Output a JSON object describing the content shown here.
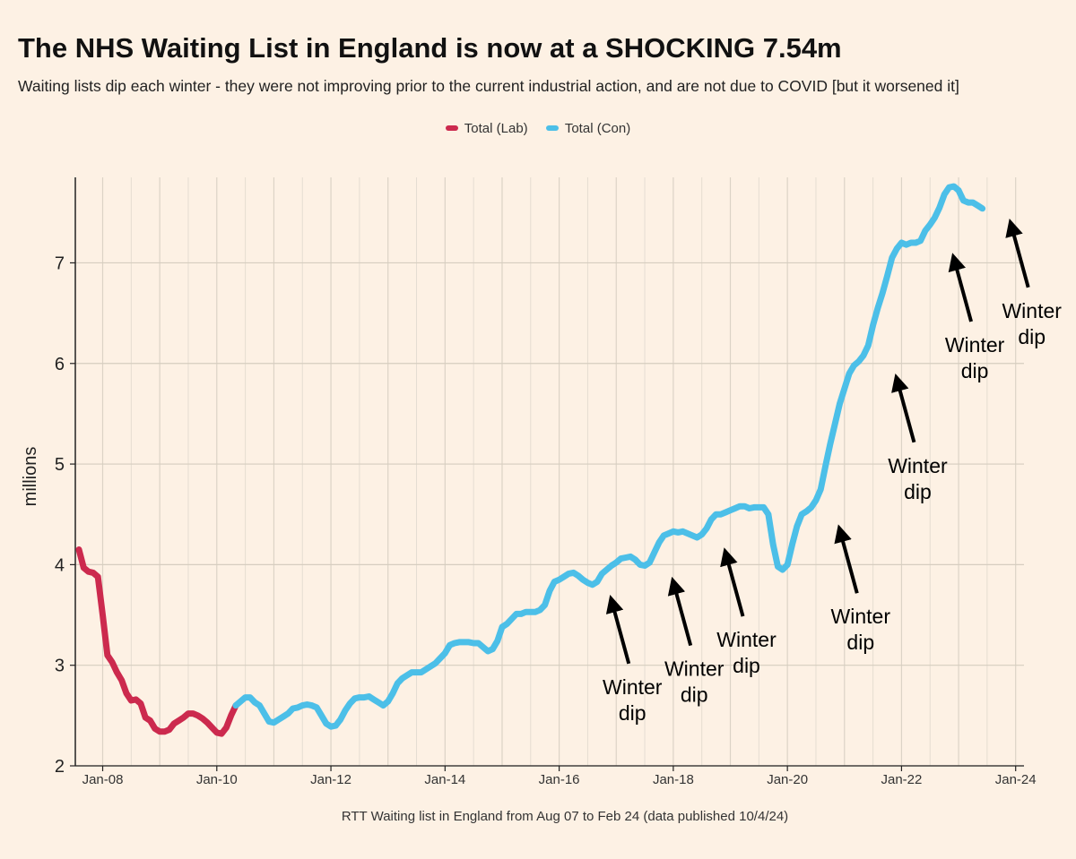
{
  "chart_data": {
    "type": "line",
    "title": "The NHS Waiting List in England is now at a SHOCKING 7.54m",
    "subtitle": "Waiting lists dip each winter - they were not improving prior to the current industrial action, and are not due to COVID [but it worsened it]",
    "ylabel": "millions",
    "xlabel": "RTT Waiting list in England from Aug 07 to Feb 24 (data published 10/4/24)",
    "ylim": [
      2,
      7.85
    ],
    "xlim": [
      "2007-08",
      "2024-02"
    ],
    "y_ticks": [
      "2",
      "3",
      "4",
      "5",
      "6",
      "7"
    ],
    "x_ticks": [
      "Jan-08",
      "Jan-10",
      "Jan-12",
      "Jan-14",
      "Jan-16",
      "Jan-18",
      "Jan-20",
      "Jan-22",
      "Jan-24"
    ],
    "grid": true,
    "legend_position": "top-center",
    "series": [
      {
        "name": "Total (Lab)",
        "color": "#cc2a4e",
        "points": [
          [
            "2007-08",
            4.15
          ],
          [
            "2007-09",
            3.97
          ],
          [
            "2007-10",
            3.93
          ],
          [
            "2007-11",
            3.92
          ],
          [
            "2007-12",
            3.88
          ],
          [
            "2008-01",
            3.5
          ],
          [
            "2008-02",
            3.1
          ],
          [
            "2008-03",
            3.03
          ],
          [
            "2008-04",
            2.93
          ],
          [
            "2008-05",
            2.85
          ],
          [
            "2008-06",
            2.72
          ],
          [
            "2008-07",
            2.65
          ],
          [
            "2008-08",
            2.66
          ],
          [
            "2008-09",
            2.62
          ],
          [
            "2008-10",
            2.48
          ],
          [
            "2008-11",
            2.45
          ],
          [
            "2008-12",
            2.37
          ],
          [
            "2009-01",
            2.34
          ],
          [
            "2009-02",
            2.34
          ],
          [
            "2009-03",
            2.36
          ],
          [
            "2009-04",
            2.42
          ],
          [
            "2009-05",
            2.45
          ],
          [
            "2009-06",
            2.48
          ],
          [
            "2009-07",
            2.52
          ],
          [
            "2009-08",
            2.52
          ],
          [
            "2009-09",
            2.5
          ],
          [
            "2009-10",
            2.47
          ],
          [
            "2009-11",
            2.43
          ],
          [
            "2009-12",
            2.38
          ],
          [
            "2010-01",
            2.33
          ],
          [
            "2010-02",
            2.32
          ],
          [
            "2010-03",
            2.38
          ],
          [
            "2010-04",
            2.5
          ],
          [
            "2010-05",
            2.6
          ]
        ]
      },
      {
        "name": "Total (Con)",
        "color": "#4cbfe8",
        "points": [
          [
            "2010-05",
            2.6
          ],
          [
            "2010-06",
            2.64
          ],
          [
            "2010-07",
            2.68
          ],
          [
            "2010-08",
            2.68
          ],
          [
            "2010-09",
            2.63
          ],
          [
            "2010-10",
            2.6
          ],
          [
            "2010-11",
            2.52
          ],
          [
            "2010-12",
            2.44
          ],
          [
            "2011-01",
            2.43
          ],
          [
            "2011-02",
            2.46
          ],
          [
            "2011-03",
            2.49
          ],
          [
            "2011-04",
            2.52
          ],
          [
            "2011-05",
            2.57
          ],
          [
            "2011-06",
            2.58
          ],
          [
            "2011-07",
            2.6
          ],
          [
            "2011-08",
            2.61
          ],
          [
            "2011-09",
            2.6
          ],
          [
            "2011-10",
            2.58
          ],
          [
            "2011-11",
            2.5
          ],
          [
            "2011-12",
            2.42
          ],
          [
            "2012-01",
            2.39
          ],
          [
            "2012-02",
            2.4
          ],
          [
            "2012-03",
            2.46
          ],
          [
            "2012-04",
            2.55
          ],
          [
            "2012-05",
            2.62
          ],
          [
            "2012-06",
            2.67
          ],
          [
            "2012-07",
            2.68
          ],
          [
            "2012-08",
            2.68
          ],
          [
            "2012-09",
            2.69
          ],
          [
            "2012-10",
            2.66
          ],
          [
            "2012-11",
            2.63
          ],
          [
            "2012-12",
            2.6
          ],
          [
            "2013-01",
            2.64
          ],
          [
            "2013-02",
            2.72
          ],
          [
            "2013-03",
            2.82
          ],
          [
            "2013-04",
            2.87
          ],
          [
            "2013-05",
            2.9
          ],
          [
            "2013-06",
            2.93
          ],
          [
            "2013-07",
            2.93
          ],
          [
            "2013-08",
            2.93
          ],
          [
            "2013-09",
            2.96
          ],
          [
            "2013-10",
            2.99
          ],
          [
            "2013-11",
            3.02
          ],
          [
            "2013-12",
            3.07
          ],
          [
            "2014-01",
            3.12
          ],
          [
            "2014-02",
            3.2
          ],
          [
            "2014-03",
            3.22
          ],
          [
            "2014-04",
            3.23
          ],
          [
            "2014-05",
            3.23
          ],
          [
            "2014-06",
            3.23
          ],
          [
            "2014-07",
            3.22
          ],
          [
            "2014-08",
            3.22
          ],
          [
            "2014-09",
            3.18
          ],
          [
            "2014-10",
            3.14
          ],
          [
            "2014-11",
            3.16
          ],
          [
            "2014-12",
            3.24
          ],
          [
            "2015-01",
            3.38
          ],
          [
            "2015-02",
            3.41
          ],
          [
            "2015-03",
            3.46
          ],
          [
            "2015-04",
            3.51
          ],
          [
            "2015-05",
            3.51
          ],
          [
            "2015-06",
            3.53
          ],
          [
            "2015-07",
            3.53
          ],
          [
            "2015-08",
            3.53
          ],
          [
            "2015-09",
            3.55
          ],
          [
            "2015-10",
            3.6
          ],
          [
            "2015-11",
            3.74
          ],
          [
            "2015-12",
            3.83
          ],
          [
            "2016-01",
            3.85
          ],
          [
            "2016-02",
            3.88
          ],
          [
            "2016-03",
            3.91
          ],
          [
            "2016-04",
            3.92
          ],
          [
            "2016-05",
            3.89
          ],
          [
            "2016-06",
            3.85
          ],
          [
            "2016-07",
            3.82
          ],
          [
            "2016-08",
            3.8
          ],
          [
            "2016-09",
            3.83
          ],
          [
            "2016-10",
            3.91
          ],
          [
            "2016-11",
            3.95
          ],
          [
            "2016-12",
            3.99
          ],
          [
            "2017-01",
            4.02
          ],
          [
            "2017-02",
            4.06
          ],
          [
            "2017-03",
            4.07
          ],
          [
            "2017-04",
            4.08
          ],
          [
            "2017-05",
            4.05
          ],
          [
            "2017-06",
            4.0
          ],
          [
            "2017-07",
            3.99
          ],
          [
            "2017-08",
            4.02
          ],
          [
            "2017-09",
            4.12
          ],
          [
            "2017-10",
            4.22
          ],
          [
            "2017-11",
            4.29
          ],
          [
            "2017-12",
            4.31
          ],
          [
            "2018-01",
            4.33
          ],
          [
            "2018-02",
            4.32
          ],
          [
            "2018-03",
            4.33
          ],
          [
            "2018-04",
            4.31
          ],
          [
            "2018-05",
            4.29
          ],
          [
            "2018-06",
            4.27
          ],
          [
            "2018-07",
            4.3
          ],
          [
            "2018-08",
            4.36
          ],
          [
            "2018-09",
            4.45
          ],
          [
            "2018-10",
            4.5
          ],
          [
            "2018-11",
            4.5
          ],
          [
            "2018-12",
            4.52
          ],
          [
            "2019-01",
            4.54
          ],
          [
            "2019-02",
            4.56
          ],
          [
            "2019-03",
            4.58
          ],
          [
            "2019-04",
            4.58
          ],
          [
            "2019-05",
            4.56
          ],
          [
            "2019-06",
            4.57
          ],
          [
            "2019-07",
            4.57
          ],
          [
            "2019-08",
            4.57
          ],
          [
            "2019-09",
            4.5
          ],
          [
            "2019-10",
            4.2
          ],
          [
            "2019-11",
            3.98
          ],
          [
            "2019-12",
            3.95
          ],
          [
            "2020-01",
            4.0
          ],
          [
            "2020-02",
            4.2
          ],
          [
            "2020-03",
            4.38
          ],
          [
            "2020-04",
            4.5
          ],
          [
            "2020-05",
            4.53
          ],
          [
            "2020-06",
            4.57
          ],
          [
            "2020-07",
            4.64
          ],
          [
            "2020-08",
            4.75
          ],
          [
            "2020-09",
            4.98
          ],
          [
            "2020-10",
            5.2
          ],
          [
            "2020-11",
            5.4
          ],
          [
            "2020-12",
            5.6
          ],
          [
            "2021-01",
            5.75
          ],
          [
            "2021-02",
            5.9
          ],
          [
            "2021-03",
            5.98
          ],
          [
            "2021-04",
            6.02
          ],
          [
            "2021-05",
            6.08
          ],
          [
            "2021-06",
            6.18
          ],
          [
            "2021-07",
            6.38
          ],
          [
            "2021-08",
            6.55
          ],
          [
            "2021-09",
            6.7
          ],
          [
            "2021-10",
            6.87
          ],
          [
            "2021-11",
            7.05
          ],
          [
            "2021-12",
            7.14
          ],
          [
            "2022-01",
            7.2
          ],
          [
            "2022-02",
            7.18
          ],
          [
            "2022-03",
            7.2
          ],
          [
            "2022-04",
            7.2
          ],
          [
            "2022-05",
            7.22
          ],
          [
            "2022-06",
            7.32
          ],
          [
            "2022-07",
            7.38
          ],
          [
            "2022-08",
            7.45
          ],
          [
            "2022-09",
            7.55
          ],
          [
            "2022-10",
            7.68
          ],
          [
            "2022-11",
            7.75
          ],
          [
            "2022-12",
            7.76
          ],
          [
            "2023-01",
            7.72
          ],
          [
            "2023-02",
            7.62
          ],
          [
            "2023-03",
            7.6
          ],
          [
            "2023-04",
            7.6
          ],
          [
            "2023-05",
            7.57
          ],
          [
            "2023-06",
            7.54
          ]
        ]
      }
    ],
    "annotations": [
      {
        "line1": "Winter",
        "line2": "dip",
        "date": "2017-01",
        "value": 3.8
      },
      {
        "line1": "Winter",
        "line2": "dip",
        "date": "2018-02",
        "value": 3.98
      },
      {
        "line1": "Winter",
        "line2": "dip",
        "date": "2019-01",
        "value": 4.27
      },
      {
        "line1": "Winter",
        "line2": "dip",
        "date": "2021-01",
        "value": 4.5
      },
      {
        "line1": "Winter",
        "line2": "dip",
        "date": "2022-01",
        "value": 6.0
      },
      {
        "line1": "Winter",
        "line2": "dip",
        "date": "2023-01",
        "value": 7.2
      },
      {
        "line1": "Winter",
        "line2": "dip",
        "date": "2024-01",
        "value": 7.54
      }
    ]
  }
}
